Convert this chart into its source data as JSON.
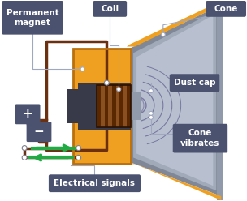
{
  "bg_color": "#ffffff",
  "orange_color": "#f0a020",
  "orange_edge": "#b87010",
  "dark_gray": "#505870",
  "label_bg": "#4a5270",
  "coil_dark": "#5a2800",
  "coil_light": "#8b5020",
  "green_arrow": "#22aa44",
  "wire_color": "#6b3010",
  "gray_cone": "#808898",
  "light_gray_cone": "#a0aab8",
  "lighter_cone": "#b8c0d0",
  "gap_dark": "#383a4a",
  "labels": {
    "permanent_magnet": "Permanent\nmagnet",
    "coil": "Coil",
    "cone": "Cone",
    "dust_cap": "Dust cap",
    "cone_vibrates": "Cone\nvibrates",
    "electrical_signals": "Electrical signals",
    "plus": "+",
    "minus": "-"
  },
  "figsize": [
    3.04,
    2.48
  ],
  "dpi": 100
}
